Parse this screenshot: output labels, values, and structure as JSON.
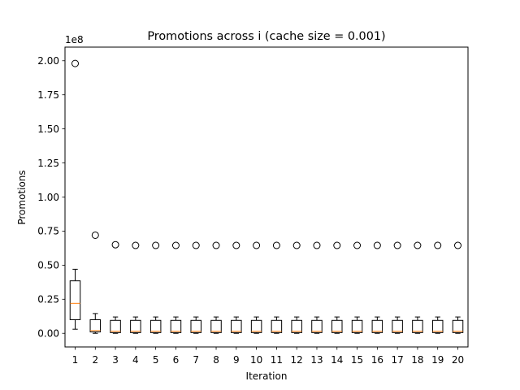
{
  "chart_data": {
    "type": "box",
    "title": "Promotions across i (cache size = 0.001)",
    "xlabel": "Iteration",
    "ylabel": "Promotions",
    "y_scale_label": "1e8",
    "y_multiplier": 100000000,
    "ylim": [
      -0.1,
      2.1
    ],
    "yticks": [
      0.0,
      0.25,
      0.5,
      0.75,
      1.0,
      1.25,
      1.5,
      1.75,
      2.0
    ],
    "ytick_labels": [
      "0.00",
      "0.25",
      "0.50",
      "0.75",
      "1.00",
      "1.25",
      "1.50",
      "1.75",
      "2.00"
    ],
    "categories": [
      "1",
      "2",
      "3",
      "4",
      "5",
      "6",
      "7",
      "8",
      "9",
      "10",
      "11",
      "12",
      "13",
      "14",
      "15",
      "16",
      "17",
      "18",
      "19",
      "20"
    ],
    "boxes": [
      {
        "whislo": 0.03,
        "q1": 0.1,
        "median": 0.22,
        "q3": 0.385,
        "whishi": 0.47,
        "fliers": [
          1.98
        ]
      },
      {
        "whislo": 0.0,
        "q1": 0.01,
        "median": 0.02,
        "q3": 0.1,
        "whishi": 0.145,
        "fliers": [
          0.72
        ]
      },
      {
        "whislo": 0.0,
        "q1": 0.005,
        "median": 0.015,
        "q3": 0.095,
        "whishi": 0.12,
        "fliers": [
          0.65
        ]
      },
      {
        "whislo": 0.0,
        "q1": 0.005,
        "median": 0.015,
        "q3": 0.095,
        "whishi": 0.12,
        "fliers": [
          0.645
        ]
      },
      {
        "whislo": 0.0,
        "q1": 0.005,
        "median": 0.015,
        "q3": 0.095,
        "whishi": 0.12,
        "fliers": [
          0.645
        ]
      },
      {
        "whislo": 0.0,
        "q1": 0.005,
        "median": 0.015,
        "q3": 0.095,
        "whishi": 0.12,
        "fliers": [
          0.645
        ]
      },
      {
        "whislo": 0.0,
        "q1": 0.005,
        "median": 0.015,
        "q3": 0.095,
        "whishi": 0.12,
        "fliers": [
          0.645
        ]
      },
      {
        "whislo": 0.0,
        "q1": 0.005,
        "median": 0.015,
        "q3": 0.095,
        "whishi": 0.12,
        "fliers": [
          0.645
        ]
      },
      {
        "whislo": 0.0,
        "q1": 0.005,
        "median": 0.015,
        "q3": 0.095,
        "whishi": 0.12,
        "fliers": [
          0.645
        ]
      },
      {
        "whislo": 0.0,
        "q1": 0.005,
        "median": 0.015,
        "q3": 0.095,
        "whishi": 0.12,
        "fliers": [
          0.645
        ]
      },
      {
        "whislo": 0.0,
        "q1": 0.005,
        "median": 0.015,
        "q3": 0.095,
        "whishi": 0.12,
        "fliers": [
          0.645
        ]
      },
      {
        "whislo": 0.0,
        "q1": 0.005,
        "median": 0.015,
        "q3": 0.095,
        "whishi": 0.12,
        "fliers": [
          0.645
        ]
      },
      {
        "whislo": 0.0,
        "q1": 0.005,
        "median": 0.015,
        "q3": 0.095,
        "whishi": 0.12,
        "fliers": [
          0.645
        ]
      },
      {
        "whislo": 0.0,
        "q1": 0.005,
        "median": 0.015,
        "q3": 0.095,
        "whishi": 0.12,
        "fliers": [
          0.645
        ]
      },
      {
        "whislo": 0.0,
        "q1": 0.005,
        "median": 0.015,
        "q3": 0.095,
        "whishi": 0.12,
        "fliers": [
          0.645
        ]
      },
      {
        "whislo": 0.0,
        "q1": 0.005,
        "median": 0.015,
        "q3": 0.095,
        "whishi": 0.12,
        "fliers": [
          0.645
        ]
      },
      {
        "whislo": 0.0,
        "q1": 0.005,
        "median": 0.015,
        "q3": 0.095,
        "whishi": 0.12,
        "fliers": [
          0.645
        ]
      },
      {
        "whislo": 0.0,
        "q1": 0.005,
        "median": 0.015,
        "q3": 0.095,
        "whishi": 0.12,
        "fliers": [
          0.645
        ]
      },
      {
        "whislo": 0.0,
        "q1": 0.005,
        "median": 0.015,
        "q3": 0.095,
        "whishi": 0.12,
        "fliers": [
          0.645
        ]
      },
      {
        "whislo": 0.0,
        "q1": 0.005,
        "median": 0.015,
        "q3": 0.095,
        "whishi": 0.12,
        "fliers": [
          0.645
        ]
      }
    ],
    "grid": false,
    "legend": "none",
    "colors": {
      "box": "#000000",
      "median": "#ff7f0e",
      "flier": "#000000",
      "background": "#ffffff"
    }
  }
}
